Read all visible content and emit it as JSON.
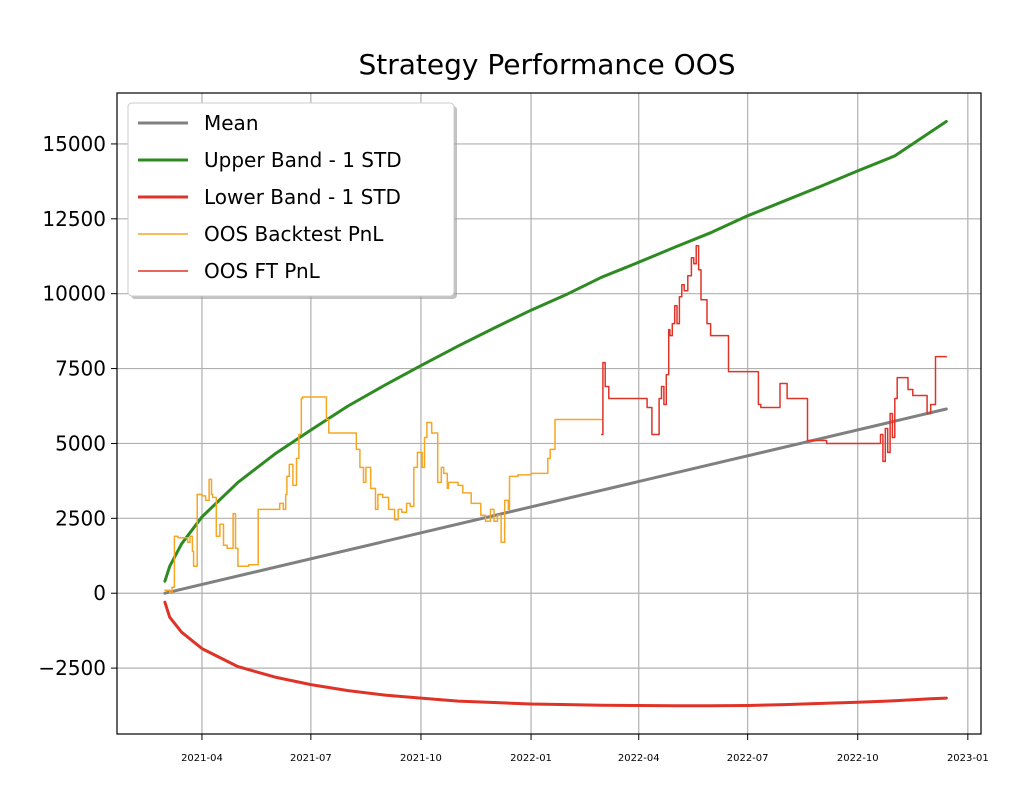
{
  "chart_data": {
    "type": "line",
    "title": "Strategy Performance OOS",
    "xlabel": "",
    "ylabel": "",
    "xlim": [
      "2021-01-20",
      "2023-01-12"
    ],
    "ylim": [
      -4700,
      16700
    ],
    "grid": true,
    "legend_position": "top-left",
    "x_ticks": [
      "2021-04",
      "2021-07",
      "2021-10",
      "2022-01",
      "2022-04",
      "2022-07",
      "2022-10",
      "2023-01"
    ],
    "y_ticks": [
      15000,
      12500,
      10000,
      7500,
      5000,
      2500,
      0,
      -2500
    ],
    "y_tick_labels": [
      "15000",
      "12500",
      "10000",
      "7500",
      "5000",
      "2500",
      "0",
      "−2500"
    ],
    "legend": [
      {
        "name": "Mean",
        "color": "#808080",
        "width": 3
      },
      {
        "name": "Upper Band - 1 STD",
        "color": "#2e8b22",
        "width": 3
      },
      {
        "name": "Lower Band - 1 STD",
        "color": "#e03328",
        "width": 3
      },
      {
        "name": "OOS Backtest PnL",
        "color": "#f5a623",
        "width": 1.5
      },
      {
        "name": "OOS FT PnL",
        "color": "#e03328",
        "width": 1.5
      }
    ],
    "series": [
      {
        "name": "Mean",
        "color": "#808080",
        "width": 3,
        "x": [
          "2021-03-01",
          "2022-12-14"
        ],
        "y": [
          0,
          6150
        ]
      },
      {
        "name": "Upper Band - 1 STD",
        "color": "#2e8b22",
        "width": 3,
        "x": [
          "2021-03-01",
          "2021-03-05",
          "2021-03-15",
          "2021-04-01",
          "2021-05-01",
          "2021-06-01",
          "2021-07-01",
          "2021-08-01",
          "2021-09-01",
          "2021-10-01",
          "2021-11-01",
          "2021-12-01",
          "2022-01-01",
          "2022-02-01",
          "2022-03-01",
          "2022-04-01",
          "2022-05-01",
          "2022-06-01",
          "2022-07-01",
          "2022-08-01",
          "2022-09-01",
          "2022-10-01",
          "2022-11-01",
          "2022-12-01",
          "2022-12-14"
        ],
        "y": [
          400,
          900,
          1650,
          2550,
          3700,
          4650,
          5450,
          6250,
          6950,
          7600,
          8250,
          8850,
          9450,
          10000,
          10550,
          11050,
          11550,
          12050,
          12600,
          13100,
          13600,
          14100,
          14600,
          15400,
          15750
        ]
      },
      {
        "name": "Lower Band - 1 STD",
        "color": "#e03328",
        "width": 3,
        "x": [
          "2021-03-01",
          "2021-03-05",
          "2021-03-15",
          "2021-04-01",
          "2021-05-01",
          "2021-06-01",
          "2021-07-01",
          "2021-08-01",
          "2021-09-01",
          "2021-10-01",
          "2021-11-01",
          "2021-12-01",
          "2022-01-01",
          "2022-02-01",
          "2022-03-01",
          "2022-04-01",
          "2022-05-01",
          "2022-06-01",
          "2022-07-01",
          "2022-08-01",
          "2022-09-01",
          "2022-10-01",
          "2022-11-01",
          "2022-12-01",
          "2022-12-14"
        ],
        "y": [
          -300,
          -800,
          -1300,
          -1850,
          -2450,
          -2800,
          -3050,
          -3250,
          -3400,
          -3500,
          -3600,
          -3650,
          -3700,
          -3720,
          -3740,
          -3750,
          -3760,
          -3760,
          -3750,
          -3720,
          -3680,
          -3640,
          -3590,
          -3520,
          -3500
        ]
      },
      {
        "name": "OOS Backtest PnL",
        "color": "#f5a623",
        "width": 1.5,
        "x": [
          "2021-03-01",
          "2021-03-05",
          "2021-03-07",
          "2021-03-09",
          "2021-03-12",
          "2021-03-20",
          "2021-03-22",
          "2021-03-24",
          "2021-03-25",
          "2021-03-28",
          "2021-04-01",
          "2021-04-04",
          "2021-04-07",
          "2021-04-09",
          "2021-04-10",
          "2021-04-13",
          "2021-04-16",
          "2021-04-19",
          "2021-04-22",
          "2021-04-27",
          "2021-04-29",
          "2021-05-01",
          "2021-05-04",
          "2021-05-07",
          "2021-05-10",
          "2021-05-18",
          "2021-05-20",
          "2021-05-22",
          "2021-06-05",
          "2021-06-08",
          "2021-06-10",
          "2021-06-11",
          "2021-06-13",
          "2021-06-16",
          "2021-06-19",
          "2021-06-21",
          "2021-06-23",
          "2021-06-24",
          "2021-07-14",
          "2021-07-16",
          "2021-08-01",
          "2021-08-04",
          "2021-08-08",
          "2021-08-11",
          "2021-08-14",
          "2021-08-16",
          "2021-08-20",
          "2021-08-24",
          "2021-08-26",
          "2021-08-30",
          "2021-09-04",
          "2021-09-09",
          "2021-09-12",
          "2021-09-15",
          "2021-09-19",
          "2021-09-22",
          "2021-09-25",
          "2021-09-28",
          "2021-10-02",
          "2021-10-04",
          "2021-10-06",
          "2021-10-10",
          "2021-10-15",
          "2021-10-18",
          "2021-10-20",
          "2021-10-23",
          "2021-10-24",
          "2021-10-28",
          "2021-11-01",
          "2021-11-05",
          "2021-11-12",
          "2021-11-20",
          "2021-11-24",
          "2021-11-28",
          "2021-12-01",
          "2021-12-04",
          "2021-12-07",
          "2021-12-10",
          "2021-12-13",
          "2021-12-14",
          "2021-12-17",
          "2021-12-21",
          "2022-01-01",
          "2022-01-15",
          "2022-01-17",
          "2022-01-21",
          "2022-01-25",
          "2022-03-01"
        ],
        "y": [
          100,
          0,
          200,
          1900,
          1850,
          1700,
          1900,
          1400,
          900,
          3300,
          3250,
          3100,
          3800,
          3300,
          3200,
          1900,
          2300,
          1600,
          1500,
          2650,
          1500,
          900,
          900,
          900,
          950,
          2800,
          2800,
          2800,
          3000,
          2800,
          3300,
          3900,
          4300,
          3600,
          4500,
          5300,
          6500,
          6550,
          5800,
          5350,
          5350,
          5350,
          4800,
          4200,
          3700,
          4200,
          3500,
          2800,
          3300,
          3200,
          2800,
          2450,
          2800,
          2700,
          3000,
          2900,
          4200,
          4700,
          4200,
          5200,
          5700,
          5350,
          3700,
          4200,
          4000,
          3500,
          3700,
          3700,
          3600,
          3350,
          3000,
          2600,
          2400,
          2800,
          2400,
          2600,
          1700,
          3100,
          2800,
          3900,
          3900,
          3950,
          4000,
          4500,
          4800,
          5800,
          5800,
          5800
        ]
      },
      {
        "name": "OOS FT PnL",
        "color": "#e03328",
        "width": 1.5,
        "x": [
          "2022-03-01",
          "2022-03-02",
          "2022-03-04",
          "2022-03-07",
          "2022-03-09",
          "2022-03-18",
          "2022-04-05",
          "2022-04-08",
          "2022-04-12",
          "2022-04-14",
          "2022-04-18",
          "2022-04-20",
          "2022-04-22",
          "2022-04-24",
          "2022-04-26",
          "2022-04-27",
          "2022-04-29",
          "2022-05-01",
          "2022-05-03",
          "2022-05-05",
          "2022-05-07",
          "2022-05-09",
          "2022-05-12",
          "2022-05-15",
          "2022-05-17",
          "2022-05-19",
          "2022-05-21",
          "2022-05-23",
          "2022-05-26",
          "2022-05-28",
          "2022-05-31",
          "2022-06-03",
          "2022-06-07",
          "2022-06-09",
          "2022-06-12",
          "2022-06-15",
          "2022-06-19",
          "2022-06-22",
          "2022-07-10",
          "2022-07-12",
          "2022-07-20",
          "2022-07-22",
          "2022-07-26",
          "2022-07-28",
          "2022-08-03",
          "2022-08-20",
          "2022-09-05",
          "2022-09-07",
          "2022-09-09",
          "2022-09-12",
          "2022-09-14",
          "2022-09-16",
          "2022-09-20",
          "2022-10-20",
          "2022-10-22",
          "2022-10-24",
          "2022-10-26",
          "2022-10-28",
          "2022-10-30",
          "2022-11-01",
          "2022-11-03",
          "2022-11-06",
          "2022-11-09",
          "2022-11-12",
          "2022-11-16",
          "2022-11-28",
          "2022-12-01",
          "2022-12-05",
          "2022-12-08",
          "2022-12-11",
          "2022-12-14"
        ],
        "y": [
          5300,
          7700,
          6900,
          6500,
          6500,
          6500,
          6500,
          6200,
          5300,
          5300,
          6500,
          6900,
          6300,
          7300,
          8800,
          8600,
          9000,
          9600,
          9000,
          9900,
          10300,
          10100,
          10600,
          11200,
          11000,
          11600,
          10800,
          9800,
          9800,
          9000,
          8600,
          8600,
          8600,
          8600,
          8600,
          7400,
          7400,
          7400,
          6300,
          6200,
          6200,
          6200,
          6200,
          7000,
          6500,
          5100,
          5000,
          5000,
          5000,
          5000,
          5000,
          5000,
          5000,
          5300,
          4400,
          5500,
          4700,
          6000,
          5200,
          6500,
          7200,
          7200,
          7200,
          6800,
          6600,
          6000,
          6300,
          7900,
          7900,
          7900,
          7900
        ]
      }
    ]
  }
}
